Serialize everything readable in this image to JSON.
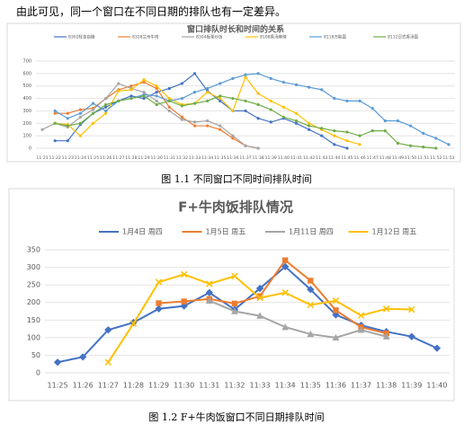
{
  "paragraph": "由此可见，同一个窗口在不同日期的排队也有一定差异。",
  "chart_data": [
    {
      "type": "line",
      "title": "窗口排队时长和时间的关系",
      "caption": "图 1.1  不同窗口不同时间排队时间",
      "categories": [
        "11:21",
        "11:22",
        "11:23",
        "11:24",
        "11:25",
        "11:26",
        "11:27",
        "11:28",
        "11:29",
        "11:30",
        "11:31",
        "11:32",
        "11:33",
        "11:34",
        "11:35",
        "11:36",
        "11:37",
        "11:38",
        "11:39",
        "11:40",
        "11:41",
        "11:42",
        "11:43",
        "11:44",
        "11:45",
        "11:46",
        "11:47",
        "11:48",
        "11:49",
        "11:50",
        "11:51",
        "11:52",
        "11:53"
      ],
      "series": [
        {
          "name": "8302轻食自酿",
          "color": "#4472c4",
          "values": [
            null,
            60,
            60,
            190,
            280,
            330,
            380,
            420,
            400,
            450,
            480,
            520,
            600,
            460,
            380,
            300,
            300,
            240,
            210,
            240,
            200,
            150,
            100,
            30,
            0,
            null,
            null,
            null,
            null,
            null,
            null,
            null,
            null
          ]
        },
        {
          "name": "8328兰州牛肉",
          "color": "#ed7d31",
          "values": [
            null,
            280,
            280,
            310,
            320,
            400,
            470,
            500,
            530,
            480,
            330,
            250,
            180,
            180,
            150,
            80,
            20,
            0,
            null,
            null,
            null,
            null,
            null,
            null,
            null,
            null,
            null,
            null,
            null,
            null,
            null,
            null,
            null
          ]
        },
        {
          "name": "8304板栗炒饭",
          "color": "#a5a5a5",
          "values": [
            150,
            200,
            170,
            250,
            310,
            400,
            520,
            480,
            450,
            380,
            300,
            230,
            210,
            220,
            180,
            100,
            20,
            0,
            null,
            null,
            null,
            null,
            null,
            null,
            null,
            null,
            null,
            null,
            null,
            null,
            null,
            null,
            null
          ]
        },
        {
          "name": "8108香汤麻辣",
          "color": "#ffc000",
          "values": [
            null,
            200,
            190,
            100,
            200,
            280,
            460,
            470,
            550,
            500,
            400,
            350,
            360,
            450,
            400,
            300,
            570,
            440,
            380,
            330,
            280,
            200,
            150,
            100,
            60,
            30,
            null,
            null,
            null,
            null,
            null,
            null,
            null
          ]
        },
        {
          "name": "8118万能面",
          "color": "#5b9bd5",
          "values": [
            null,
            300,
            240,
            280,
            360,
            300,
            380,
            400,
            430,
            420,
            380,
            400,
            450,
            480,
            520,
            560,
            590,
            600,
            560,
            530,
            510,
            490,
            470,
            400,
            380,
            380,
            320,
            220,
            220,
            180,
            120,
            80,
            30
          ]
        },
        {
          "name": "8112日式香汤面",
          "color": "#70ad47",
          "values": [
            null,
            200,
            180,
            200,
            280,
            350,
            380,
            400,
            420,
            350,
            380,
            340,
            360,
            380,
            420,
            400,
            380,
            350,
            310,
            250,
            220,
            180,
            160,
            140,
            130,
            100,
            140,
            140,
            40,
            20,
            10,
            0,
            null
          ]
        }
      ],
      "ylim": [
        0,
        700
      ],
      "yticks": [
        0,
        100,
        200,
        300,
        400,
        500,
        600,
        700
      ],
      "grid": true
    },
    {
      "type": "line",
      "title": "F+牛肉饭排队情况",
      "caption": "图 1.2  F+牛肉饭窗口不同日期排队时间",
      "categories": [
        "11:25",
        "11:26",
        "11:27",
        "11:28",
        "11:29",
        "11:30",
        "11:31",
        "11:32",
        "11:33",
        "11:34",
        "11:35",
        "11:36",
        "11:37",
        "11:38",
        "11:39",
        "11:40"
      ],
      "series": [
        {
          "name": "1月4日 周四",
          "color": "#4472c4",
          "marker": "diamond",
          "values": [
            30,
            45,
            122,
            143,
            182,
            190,
            228,
            180,
            240,
            302,
            237,
            165,
            135,
            117,
            103,
            70
          ]
        },
        {
          "name": "1月5日 周五",
          "color": "#ed7d31",
          "marker": "square",
          "values": [
            null,
            null,
            null,
            null,
            198,
            203,
            210,
            197,
            218,
            320,
            262,
            178,
            130,
            112,
            null,
            null
          ]
        },
        {
          "name": "1月11日 周四",
          "color": "#a5a5a5",
          "marker": "triangle",
          "values": [
            null,
            null,
            null,
            null,
            null,
            null,
            205,
            175,
            162,
            130,
            110,
            100,
            122,
            103,
            null,
            null
          ]
        },
        {
          "name": "1月12日 周五",
          "color": "#ffc000",
          "marker": "x",
          "values": [
            null,
            null,
            30,
            140,
            258,
            280,
            253,
            275,
            213,
            228,
            193,
            205,
            163,
            182,
            180,
            null
          ]
        }
      ],
      "ylim": [
        0,
        350
      ],
      "yticks": [
        0,
        50,
        100,
        150,
        200,
        250,
        300,
        350
      ],
      "grid": true
    }
  ]
}
